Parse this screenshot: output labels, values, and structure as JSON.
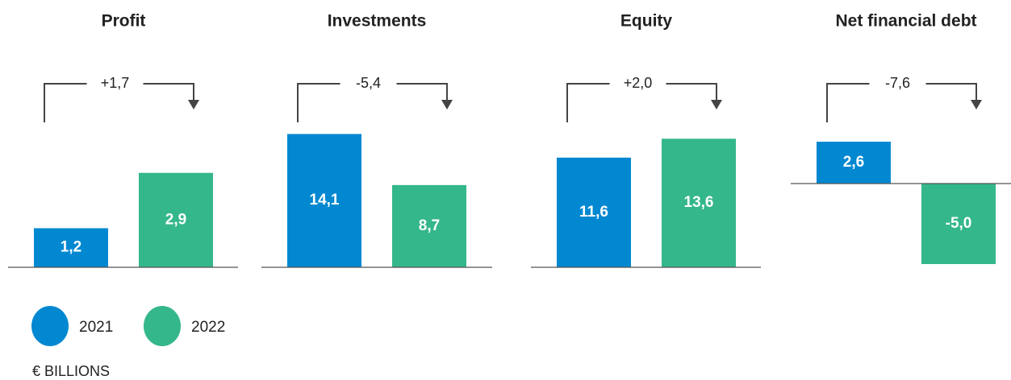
{
  "chart_data": [
    {
      "type": "bar",
      "title": "Profit",
      "values": [
        1.2,
        2.9
      ],
      "value_labels": [
        "1,2",
        "2,9"
      ],
      "annotation": "+1,7",
      "ylim": [
        0,
        4.5
      ]
    },
    {
      "type": "bar",
      "title": "Investments",
      "values": [
        14.1,
        8.7
      ],
      "value_labels": [
        "14,1",
        "8,7"
      ],
      "annotation": "-5,4",
      "ylim": [
        0,
        15.5
      ]
    },
    {
      "type": "bar",
      "title": "Equity",
      "values": [
        11.6,
        13.6
      ],
      "value_labels": [
        "11,6",
        "13,6"
      ],
      "annotation": "+2,0",
      "ylim": [
        0,
        15.5
      ]
    },
    {
      "type": "bar",
      "title": "Net financial debt",
      "values": [
        2.6,
        -5.0
      ],
      "value_labels": [
        "2,6",
        "-5,0"
      ],
      "annotation": "-7,6",
      "ylim": [
        -5.2,
        3.9
      ]
    }
  ],
  "legend": [
    {
      "name": "2021",
      "color": "#0288d1"
    },
    {
      "name": "2022",
      "color": "#34b78a"
    }
  ],
  "unit_note": "€ BILLIONS"
}
